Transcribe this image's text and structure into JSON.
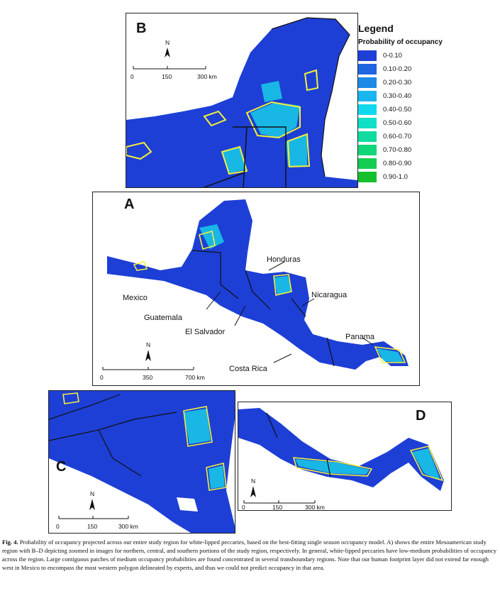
{
  "legend": {
    "title": "Legend",
    "subtitle": "Probability of occupancy",
    "classes": [
      {
        "label": "0-0.10",
        "color": "#1d3fd6"
      },
      {
        "label": "0.10-0.20",
        "color": "#1f66e0"
      },
      {
        "label": "0.20-0.30",
        "color": "#1c8ae6"
      },
      {
        "label": "0.30-0.40",
        "color": "#19b5ef"
      },
      {
        "label": "0.40-0.50",
        "color": "#12d8ef"
      },
      {
        "label": "0.50-0.60",
        "color": "#10e0c8"
      },
      {
        "label": "0.60-0.70",
        "color": "#10dca0"
      },
      {
        "label": "0.70-0.80",
        "color": "#12d67a"
      },
      {
        "label": "0.80-0.90",
        "color": "#14cc52"
      },
      {
        "label": "0.90-1.0",
        "color": "#16c02c"
      }
    ]
  },
  "colors": {
    "low": "#1d3fd6",
    "medium": "#19d6e8",
    "expert_polygon": "#f3f03a",
    "border": "#111111"
  },
  "panels": {
    "b": {
      "letter": "B",
      "scale": {
        "ticks": [
          "0",
          "150",
          "300 km"
        ]
      },
      "north": "N"
    },
    "a": {
      "letter": "A",
      "scale": {
        "ticks": [
          "0",
          "350",
          "700 km"
        ]
      },
      "north": "N",
      "countries": {
        "honduras": "Honduras",
        "mexico": "Mexico",
        "nicaragua": "Nicaragua",
        "guatemala": "Guatemala",
        "el_salvador": "El Salvador",
        "panama": "Panama",
        "costa_rica": "Costa Rica"
      }
    },
    "c": {
      "letter": "C",
      "scale": {
        "ticks": [
          "0",
          "150",
          "300 km"
        ]
      },
      "north": "N"
    },
    "d": {
      "letter": "D",
      "scale": {
        "ticks": [
          "0",
          "150",
          "300 km"
        ]
      },
      "north": "N"
    }
  },
  "caption": {
    "fig": "Fig. 4.",
    "text": "Probability of occupancy projected across our entire study region for white-lipped peccaries, based on the best-fitting single season occupancy model. A) shows the entire Mesoamerican study region with B–D depicting zoomed in images for northern, central, and southern portions of the study region, respectively. In general, white-lipped peccaries have low-medium probabilities of occupancy across the region. Large contiguous patches of medium occupancy probabilities are found concentrated in several transboundary regions. Note that our human footprint layer did not extend far enough west in Mexico to encompass the most western polygon delineated by experts, and thus we could not predict occupancy in that area."
  }
}
